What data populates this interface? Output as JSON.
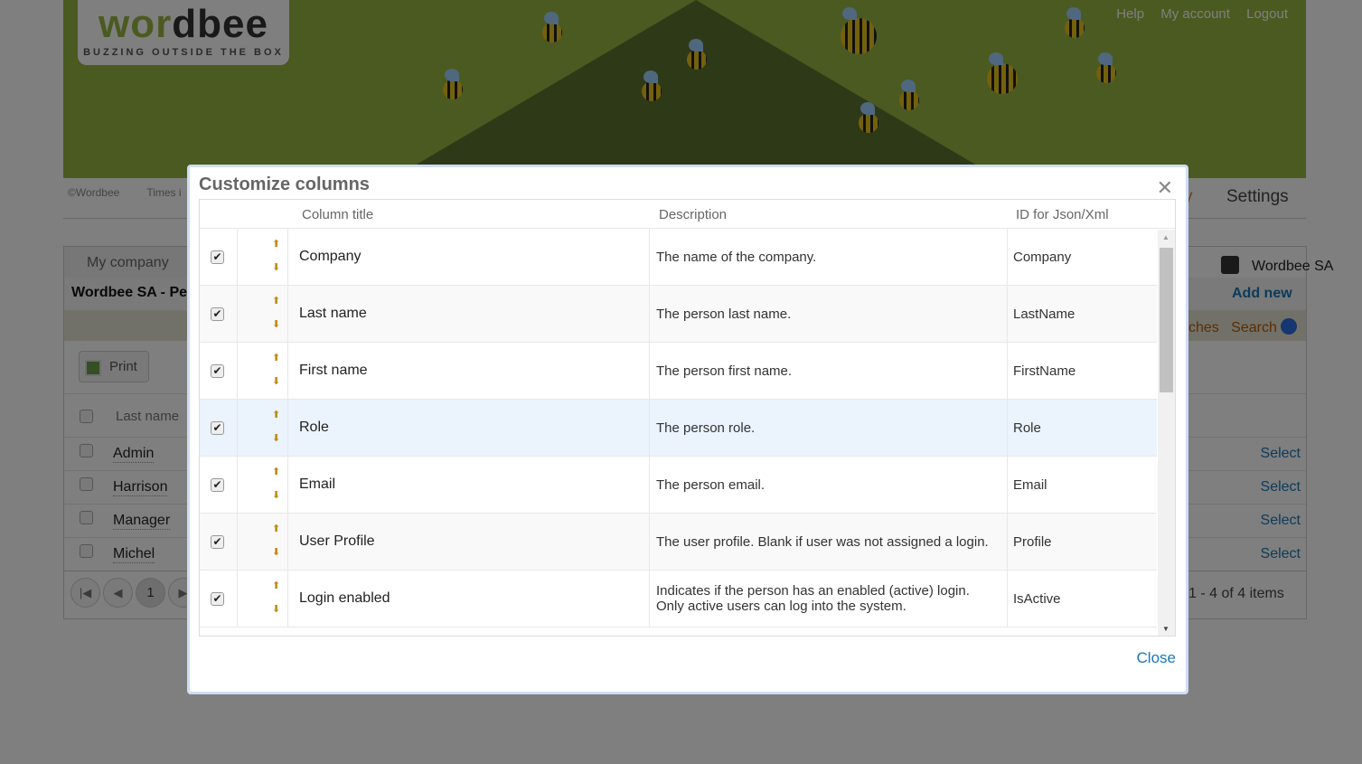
{
  "header": {
    "logo": {
      "word1": "wor",
      "word2": "dbee",
      "tagline": "BUZZING OUTSIDE THE BOX"
    },
    "links": [
      "Help",
      "My account",
      "Logout"
    ]
  },
  "footer": {
    "copyright": "©Wordbee",
    "times": "Times i"
  },
  "nav": {
    "partial": "y",
    "settings": "Settings"
  },
  "panel": {
    "tab": "My company",
    "title": "Wordbee SA - Pe",
    "company": "Wordbee SA",
    "add_new": "Add new",
    "searches": "ches",
    "search": "Search",
    "print": "Print",
    "col_last_name": "Last name",
    "rows": [
      {
        "name": "Admin",
        "action": "Select"
      },
      {
        "name": "Harrison",
        "action": "Select"
      },
      {
        "name": "Manager",
        "action": "Select"
      },
      {
        "name": "Michel",
        "action": "Select"
      }
    ],
    "pager": {
      "page": "1",
      "summary": "1 - 4 of 4 items"
    }
  },
  "dialog": {
    "title": "Customize columns",
    "close_label": "Close",
    "headers": {
      "title": "Column title",
      "description": "Description",
      "id": "ID for Json/Xml"
    },
    "rows": [
      {
        "title": "Company",
        "description": "The name of the company.",
        "id": "Company",
        "checked": true
      },
      {
        "title": "Last name",
        "description": "The person last name.",
        "id": "LastName",
        "checked": true
      },
      {
        "title": "First name",
        "description": "The person first name.",
        "id": "FirstName",
        "checked": true
      },
      {
        "title": "Role",
        "description": "The person role.",
        "id": "Role",
        "checked": true
      },
      {
        "title": "Email",
        "description": "The person email.",
        "id": "Email",
        "checked": true
      },
      {
        "title": "User Profile",
        "description": "The user profile. Blank if user was not assigned a login.",
        "id": "Profile",
        "checked": true
      },
      {
        "title": "Login enabled",
        "description": "Indicates if the person has an enabled (active) login.",
        "description2": "Only active users can log into the system.",
        "id": "IsActive",
        "checked": true
      }
    ]
  },
  "colors": {
    "banner": "#96b440",
    "link": "#1a77b5",
    "arrow": "#c08a10",
    "highlight": "#ebf3fd"
  }
}
